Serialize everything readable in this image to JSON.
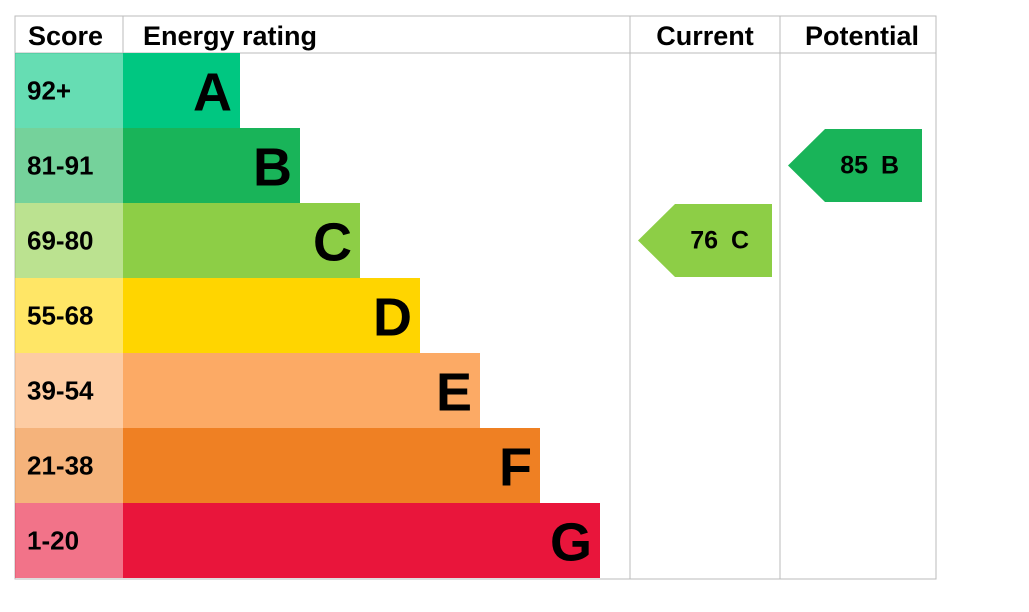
{
  "header": {
    "score": "Score",
    "rating": "Energy rating",
    "current": "Current",
    "potential": "Potential"
  },
  "rows": [
    {
      "score": "92+",
      "band": "A",
      "color": "#00c781"
    },
    {
      "score": "81-91",
      "band": "B",
      "color": "#19b459"
    },
    {
      "score": "69-80",
      "band": "C",
      "color": "#8dce46"
    },
    {
      "score": "55-68",
      "band": "D",
      "color": "#ffd500"
    },
    {
      "score": "39-54",
      "band": "E",
      "color": "#fcaa65"
    },
    {
      "score": "21-38",
      "band": "F",
      "color": "#ef8023"
    },
    {
      "score": "1-20",
      "band": "G",
      "color": "#e9153b"
    }
  ],
  "current": {
    "value": 76,
    "band": "C"
  },
  "potential": {
    "value": 85,
    "band": "B"
  }
}
